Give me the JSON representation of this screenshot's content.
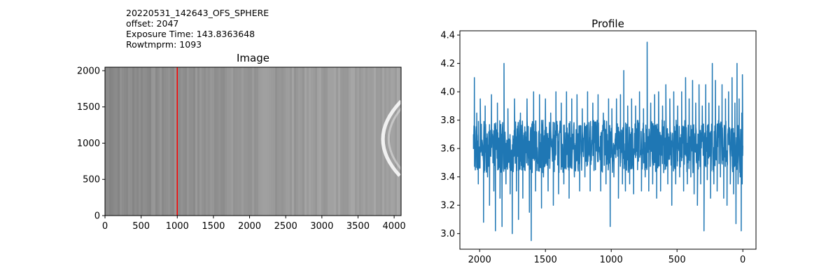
{
  "info": {
    "filename": "20220531_142643_OFS_SPHERE",
    "offset_line": "offset: 2047",
    "exposure_line": "Exposure Time: 143.8363648",
    "rowtmprm_line": "Rowtmprm: 1093"
  },
  "colors": {
    "line": "#1f77b4",
    "marker": "#ff0000",
    "axis": "#000000"
  },
  "chart_data": [
    {
      "type": "heatmap",
      "title": "Image",
      "xlabel": "",
      "ylabel": "",
      "xlim": [
        0,
        4096
      ],
      "ylim": [
        0,
        2048
      ],
      "xticks": [
        0,
        500,
        1000,
        1500,
        2000,
        2500,
        3000,
        3500,
        4000
      ],
      "yticks": [
        0,
        500,
        1000,
        1500,
        2000
      ],
      "colormap": "gray",
      "marker_line": {
        "axis": "x",
        "value": 1000,
        "color": "#ff0000"
      },
      "features": [
        {
          "kind": "bright-arc",
          "x_range": [
            3700,
            4096
          ],
          "y_range": [
            550,
            1580
          ]
        }
      ]
    },
    {
      "type": "line",
      "title": "Profile",
      "xlabel": "",
      "ylabel": "",
      "x_inverted": true,
      "xlim": [
        2150,
        -100
      ],
      "ylim": [
        2.89,
        4.43
      ],
      "xticks": [
        2000,
        1500,
        1000,
        500,
        0
      ],
      "yticks": [
        3.0,
        3.2,
        3.4,
        3.6,
        3.8,
        4.0,
        4.2,
        4.4
      ],
      "ytick_labels": [
        "3.0",
        "3.2",
        "3.4",
        "3.6",
        "3.8",
        "4.0",
        "4.2",
        "4.4"
      ],
      "series": [
        {
          "noise_band": {
            "x_range": [
              0,
              2047
            ],
            "low": 3.35,
            "high": 3.88
          },
          "points": [
            [
              2047,
              3.6
            ],
            [
              2040,
              4.1
            ],
            [
              2033,
              3.45
            ],
            [
              2022,
              3.85
            ],
            [
              2010,
              3.35
            ],
            [
              1995,
              3.95
            ],
            [
              1982,
              3.55
            ],
            [
              1970,
              3.08
            ],
            [
              1958,
              3.9
            ],
            [
              1940,
              3.4
            ],
            [
              1925,
              3.2
            ],
            [
              1910,
              3.98
            ],
            [
              1892,
              3.3
            ],
            [
              1880,
              3.02
            ],
            [
              1865,
              3.92
            ],
            [
              1845,
              3.25
            ],
            [
              1830,
              3.05
            ],
            [
              1815,
              4.2
            ],
            [
              1800,
              3.35
            ],
            [
              1785,
              3.88
            ],
            [
              1768,
              3.28
            ],
            [
              1752,
              3.0
            ],
            [
              1735,
              3.95
            ],
            [
              1720,
              3.3
            ],
            [
              1705,
              3.1
            ],
            [
              1690,
              3.85
            ],
            [
              1672,
              3.25
            ],
            [
              1655,
              3.45
            ],
            [
              1640,
              3.95
            ],
            [
              1622,
              3.15
            ],
            [
              1608,
              2.95
            ],
            [
              1590,
              4.0
            ],
            [
              1575,
              3.3
            ],
            [
              1560,
              3.5
            ],
            [
              1545,
              3.98
            ],
            [
              1530,
              3.18
            ],
            [
              1515,
              3.4
            ],
            [
              1500,
              3.95
            ],
            [
              1480,
              3.3
            ],
            [
              1460,
              3.85
            ],
            [
              1440,
              3.2
            ],
            [
              1420,
              4.0
            ],
            [
              1400,
              3.28
            ],
            [
              1380,
              3.92
            ],
            [
              1360,
              3.35
            ],
            [
              1340,
              4.0
            ],
            [
              1320,
              3.25
            ],
            [
              1300,
              3.95
            ],
            [
              1280,
              3.4
            ],
            [
              1260,
              3.98
            ],
            [
              1240,
              3.3
            ],
            [
              1220,
              3.88
            ],
            [
              1200,
              3.4
            ],
            [
              1180,
              4.0
            ],
            [
              1160,
              3.3
            ],
            [
              1140,
              3.92
            ],
            [
              1120,
              3.45
            ],
            [
              1100,
              3.98
            ],
            [
              1080,
              3.3
            ],
            [
              1060,
              3.85
            ],
            [
              1040,
              3.35
            ],
            [
              1020,
              3.95
            ],
            [
              1008,
              3.05
            ],
            [
              995,
              3.88
            ],
            [
              980,
              3.4
            ],
            [
              960,
              3.95
            ],
            [
              945,
              3.25
            ],
            [
              930,
              3.98
            ],
            [
              915,
              3.35
            ],
            [
              905,
              4.15
            ],
            [
              892,
              3.3
            ],
            [
              875,
              3.9
            ],
            [
              860,
              3.35
            ],
            [
              845,
              3.95
            ],
            [
              830,
              3.28
            ],
            [
              815,
              3.9
            ],
            [
              800,
              3.45
            ],
            [
              785,
              4.0
            ],
            [
              770,
              3.3
            ],
            [
              755,
              3.88
            ],
            [
              742,
              3.4
            ],
            [
              727,
              4.35
            ],
            [
              715,
              3.3
            ],
            [
              700,
              3.92
            ],
            [
              685,
              3.35
            ],
            [
              670,
              3.98
            ],
            [
              655,
              3.25
            ],
            [
              640,
              4.0
            ],
            [
              625,
              3.3
            ],
            [
              610,
              3.9
            ],
            [
              598,
              3.45
            ],
            [
              585,
              4.05
            ],
            [
              570,
              3.35
            ],
            [
              555,
              3.95
            ],
            [
              540,
              3.2
            ],
            [
              525,
              4.0
            ],
            [
              510,
              3.35
            ],
            [
              495,
              3.9
            ],
            [
              480,
              3.4
            ],
            [
              465,
              4.0
            ],
            [
              450,
              3.3
            ],
            [
              435,
              4.1
            ],
            [
              422,
              3.35
            ],
            [
              408,
              3.95
            ],
            [
              395,
              3.4
            ],
            [
              382,
              4.08
            ],
            [
              370,
              3.28
            ],
            [
              358,
              3.92
            ],
            [
              345,
              3.2
            ],
            [
              333,
              4.05
            ],
            [
              320,
              3.35
            ],
            [
              308,
              3.9
            ],
            [
              295,
              3.02
            ],
            [
              282,
              4.05
            ],
            [
              270,
              3.38
            ],
            [
              258,
              3.92
            ],
            [
              245,
              3.25
            ],
            [
              232,
              4.2
            ],
            [
              220,
              3.35
            ],
            [
              208,
              4.08
            ],
            [
              195,
              3.3
            ],
            [
              182,
              3.9
            ],
            [
              170,
              3.4
            ],
            [
              158,
              4.05
            ],
            [
              145,
              3.25
            ],
            [
              132,
              3.95
            ],
            [
              120,
              3.2
            ],
            [
              108,
              4.0
            ],
            [
              95,
              3.35
            ],
            [
              82,
              4.1
            ],
            [
              70,
              3.28
            ],
            [
              60,
              3.92
            ],
            [
              52,
              3.07
            ],
            [
              44,
              4.2
            ],
            [
              36,
              3.35
            ],
            [
              28,
              3.95
            ],
            [
              20,
              3.4
            ],
            [
              12,
              3.02
            ],
            [
              8,
              3.85
            ],
            [
              5,
              3.35
            ],
            [
              3,
              4.12
            ],
            [
              1,
              3.55
            ],
            [
              0,
              3.62
            ]
          ]
        }
      ]
    }
  ]
}
